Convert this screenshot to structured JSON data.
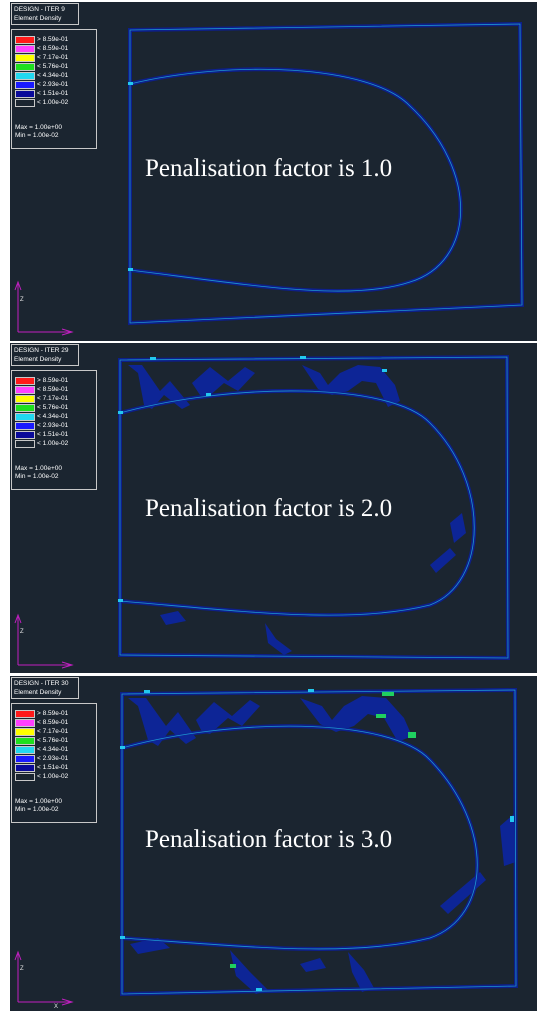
{
  "legend_colors": [
    "#ff1a1a",
    "#ff40ff",
    "#ffff00",
    "#1ee01e",
    "#22d8f0",
    "#1a1aff",
    "#0a0a9a",
    "#1b2530"
  ],
  "legend_values": [
    "> 8.59e-01",
    "< 8.59e-01",
    "< 7.17e-01",
    "< 5.76e-01",
    "< 4.34e-01",
    "< 2.93e-01",
    "< 1.51e-01",
    "< 1.00e-02"
  ],
  "panels": [
    {
      "header_title": "DESIGN - ITER 9",
      "header_subtitle": "Element Density",
      "max_label": "Max = 1.00e+00",
      "min_label": "Min = 1.00e-02",
      "caption": "Penalisation factor is 1.0"
    },
    {
      "header_title": "DESIGN - ITER 29",
      "header_subtitle": "Element Density",
      "max_label": "Max = 1.00e+00",
      "min_label": "Min = 1.00e-02",
      "caption": "Penalisation factor is 2.0"
    },
    {
      "header_title": "DESIGN - ITER 30",
      "header_subtitle": "Element Density",
      "max_label": "Max = 1.00e+00",
      "min_label": "Min = 1.00e-02",
      "caption": "Penalisation factor is 3.0"
    }
  ],
  "axes": {
    "vertical_label": "Z",
    "horizontal_label": "X"
  }
}
